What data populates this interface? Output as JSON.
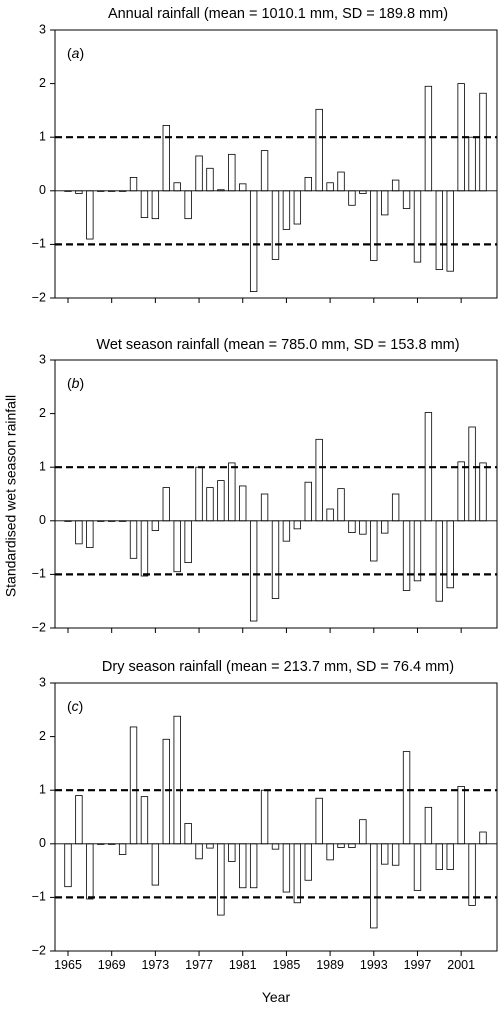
{
  "chart_data": {
    "type": "bar",
    "ylabel": "Standardised wet season rainfall",
    "xlabel": "Year",
    "x_tick_labels": [
      "1965",
      "1969",
      "1973",
      "1977",
      "1981",
      "1985",
      "1989",
      "1993",
      "1997",
      "2001"
    ],
    "x_range": [
      1965,
      2003
    ],
    "reference_lines": [
      1,
      -1
    ],
    "panels": [
      {
        "title": "Annual rainfall (mean = 1010.1 mm, SD = 189.8 mm)",
        "panel_label": "a",
        "ylim": [
          -2,
          3
        ],
        "yticks": [
          "3",
          "2",
          "1",
          "0",
          "−1",
          "−2"
        ],
        "years": [
          1965,
          1966,
          1967,
          1968,
          1969,
          1970,
          1971,
          1972,
          1973,
          1974,
          1975,
          1976,
          1977,
          1978,
          1979,
          1980,
          1981,
          1982,
          1983,
          1984,
          1985,
          1986,
          1987,
          1988,
          1989,
          1990,
          1991,
          1992,
          1993,
          1994,
          1995,
          1996,
          1997,
          1998,
          1999,
          2000,
          2001,
          2002,
          2003
        ],
        "values": [
          0,
          -0.05,
          -0.9,
          0,
          0,
          0,
          0.25,
          -0.5,
          -0.52,
          1.22,
          0.15,
          -0.52,
          0.65,
          0.42,
          0.02,
          0.68,
          0.13,
          -1.88,
          0.75,
          -1.28,
          -0.72,
          -0.62,
          0.25,
          1.52,
          0.15,
          0.35,
          -0.27,
          -0.05,
          -1.3,
          -0.45,
          0.2,
          -0.33,
          -1.33,
          1.95,
          -1.47,
          -1.5,
          2.0,
          1.0,
          1.82
        ]
      },
      {
        "title": "Wet season rainfall (mean = 785.0 mm, SD = 153.8 mm)",
        "panel_label": "b",
        "ylim": [
          -2,
          3
        ],
        "yticks": [
          "3",
          "2",
          "1",
          "0",
          "−1",
          "−2"
        ],
        "years": [
          1965,
          1966,
          1967,
          1968,
          1969,
          1970,
          1971,
          1972,
          1973,
          1974,
          1975,
          1976,
          1977,
          1978,
          1979,
          1980,
          1981,
          1982,
          1983,
          1984,
          1985,
          1986,
          1987,
          1988,
          1989,
          1990,
          1991,
          1992,
          1993,
          1994,
          1995,
          1996,
          1997,
          1998,
          1999,
          2000,
          2001,
          2002,
          2003
        ],
        "values": [
          0,
          -0.43,
          -0.5,
          0,
          0,
          0,
          -0.7,
          -1.03,
          -0.18,
          0.62,
          -0.95,
          -0.78,
          1.0,
          0.62,
          0.75,
          1.08,
          0.65,
          -1.87,
          0.5,
          -1.45,
          -0.38,
          -0.15,
          0.72,
          1.52,
          0.22,
          0.6,
          -0.22,
          -0.25,
          -0.75,
          -0.23,
          0.5,
          -1.3,
          -1.12,
          2.02,
          -1.5,
          -1.25,
          1.1,
          1.75,
          1.08
        ]
      },
      {
        "title": "Dry season rainfall (mean = 213.7 mm, SD = 76.4 mm)",
        "panel_label": "c",
        "ylim": [
          -2,
          3
        ],
        "yticks": [
          "3",
          "2",
          "1",
          "0",
          "−1",
          "−2"
        ],
        "years": [
          1965,
          1966,
          1967,
          1968,
          1969,
          1970,
          1971,
          1972,
          1973,
          1974,
          1975,
          1976,
          1977,
          1978,
          1979,
          1980,
          1981,
          1982,
          1983,
          1984,
          1985,
          1986,
          1987,
          1988,
          1989,
          1990,
          1991,
          1992,
          1993,
          1994,
          1995,
          1996,
          1997,
          1998,
          1999,
          2000,
          2001,
          2002,
          2003
        ],
        "values": [
          -0.8,
          0.9,
          -1.03,
          0,
          0,
          -0.2,
          2.18,
          0.88,
          -0.77,
          1.95,
          2.38,
          0.38,
          -0.28,
          -0.08,
          -1.33,
          -0.33,
          -0.82,
          -0.82,
          1.0,
          -0.1,
          -0.9,
          -1.1,
          -0.68,
          0.85,
          -0.3,
          -0.07,
          -0.07,
          0.45,
          -1.57,
          -0.38,
          -0.4,
          1.72,
          -0.87,
          0.68,
          -0.48,
          -0.48,
          1.07,
          -1.15,
          0.22
        ]
      }
    ]
  }
}
